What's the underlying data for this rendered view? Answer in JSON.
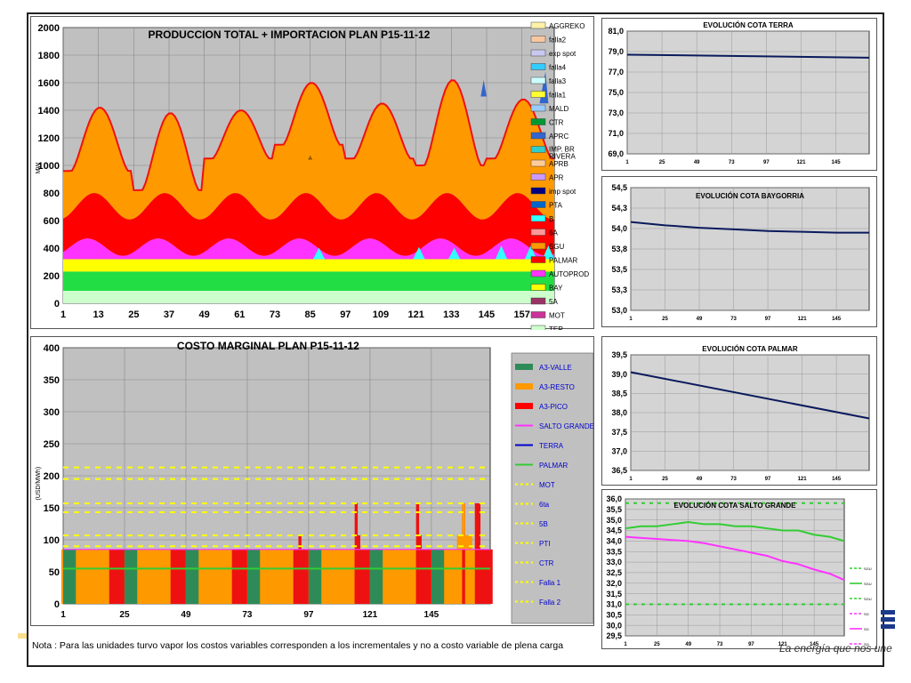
{
  "note": "Nota : Para las unidades turvo vapor los costos variables corresponden a los incrementales y no a costo variable de plena carga",
  "tagline": "La energía que nos une",
  "colors": {
    "plot_bg": "#c0c0c0",
    "line_dark": "#0a1a5c"
  },
  "chart_data": [
    {
      "id": "production",
      "type": "area",
      "title": "PRODUCCION TOTAL + IMPORTACION PLAN    P15-11-12",
      "ylabel": "MW",
      "ylim": [
        0,
        2000
      ],
      "yticks": [
        0,
        200,
        400,
        600,
        800,
        1000,
        1200,
        1400,
        1600,
        1800,
        2000
      ],
      "xlim": [
        1,
        168
      ],
      "xticks": [
        1,
        13,
        25,
        37,
        49,
        61,
        73,
        85,
        97,
        109,
        121,
        133,
        145,
        157
      ],
      "annotation": "A",
      "legend": [
        {
          "name": "AGGREKO",
          "color": "#fff2a8"
        },
        {
          "name": "falla2",
          "color": "#f7c8a0"
        },
        {
          "name": "exp spot",
          "color": "#c8c8f0"
        },
        {
          "name": "falla4",
          "color": "#33ccff"
        },
        {
          "name": "falla3",
          "color": "#ccffff"
        },
        {
          "name": "falla1",
          "color": "#ffff33"
        },
        {
          "name": "MALD",
          "color": "#99ccff"
        },
        {
          "name": "CTR",
          "color": "#009933"
        },
        {
          "name": "APRC",
          "color": "#3366cc"
        },
        {
          "name": "IMP. BR RIVERA",
          "color": "#33cccc"
        },
        {
          "name": "APRB",
          "color": "#ffcc99"
        },
        {
          "name": "APR",
          "color": "#cc99ff"
        },
        {
          "name": "imp spot",
          "color": "#000080"
        },
        {
          "name": "PTA",
          "color": "#0066cc"
        },
        {
          "name": "B",
          "color": "#33ffff"
        },
        {
          "name": "6A",
          "color": "#ff9999"
        },
        {
          "name": "SGU",
          "color": "#ff9900"
        },
        {
          "name": "PALMAR",
          "color": "#ff0000"
        },
        {
          "name": "AUTOPROD",
          "color": "#ff33ff"
        },
        {
          "name": "BAY",
          "color": "#ffff00"
        },
        {
          "name": "5A",
          "color": "#993366"
        },
        {
          "name": "MOT",
          "color": "#cc3399"
        },
        {
          "name": "TER",
          "color": "#ccffcc"
        }
      ],
      "series_levels": {
        "TER": 90,
        "CTR_top": 230,
        "BAY_top": 320,
        "AUTOPROD_peak": 470,
        "PALMAR_peak": 800,
        "SGU_daily_peak": [
          1420,
          1380,
          1400,
          1600,
          1450,
          1620,
          1480,
          1700
        ],
        "SGU_daily_valley": [
          960,
          820,
          1050,
          1150,
          1050,
          1000,
          1050,
          1150
        ]
      }
    },
    {
      "id": "marginal-cost",
      "type": "bar",
      "title": "COSTO MARGINAL PLAN    P15-11-12",
      "ylabel": "(USD/MWh)",
      "ylim": [
        0,
        400
      ],
      "yticks": [
        0,
        50,
        100,
        150,
        200,
        250,
        300,
        350,
        400
      ],
      "xlim": [
        1,
        168
      ],
      "xticks": [
        1,
        25,
        49,
        73,
        97,
        121,
        145
      ],
      "legend": [
        {
          "name": "A3-VALLE",
          "color": "#2e8b57",
          "style": "bar"
        },
        {
          "name": "A3-RESTO",
          "color": "#ff9900",
          "style": "bar"
        },
        {
          "name": "A3-PICO",
          "color": "#ff0000",
          "style": "bar"
        },
        {
          "name": "SALTO GRANDE",
          "color": "#ff33ff",
          "style": "line"
        },
        {
          "name": "TERRA",
          "color": "#0000cc",
          "style": "line"
        },
        {
          "name": "PALMAR",
          "color": "#33cc33",
          "style": "line"
        },
        {
          "name": "MOT",
          "color": "#ffff00",
          "style": "dash"
        },
        {
          "name": "6ta",
          "color": "#ffff00",
          "style": "dash"
        },
        {
          "name": "5B",
          "color": "#ffff00",
          "style": "dash"
        },
        {
          "name": "PTI",
          "color": "#ffff00",
          "style": "dash"
        },
        {
          "name": "CTR",
          "color": "#ffff00",
          "style": "dash"
        },
        {
          "name": "Falla 1",
          "color": "#ffff00",
          "style": "dash"
        },
        {
          "name": "Falla 2",
          "color": "#ffff00",
          "style": "dash"
        }
      ],
      "base_cost": 85,
      "palmar_line": 55,
      "dash_levels": [
        213,
        195,
        157,
        143,
        107,
        90
      ],
      "spikes": [
        {
          "x": 93,
          "value": 107
        },
        {
          "x": 115,
          "value": 157
        },
        {
          "x": 116,
          "value": 107
        },
        {
          "x": 139,
          "value": 157
        },
        {
          "x": 140,
          "value": 107
        },
        {
          "x": 157,
          "value": 157
        },
        {
          "x": 162,
          "value": 157
        },
        {
          "x": 163,
          "value": 157
        }
      ],
      "valle_bands": [
        [
          1,
          5
        ],
        [
          25,
          29
        ],
        [
          49,
          53
        ],
        [
          73,
          77
        ],
        [
          97,
          101
        ],
        [
          121,
          125
        ],
        [
          145,
          149
        ]
      ],
      "pico_bands": [
        [
          19,
          24
        ],
        [
          43,
          48
        ],
        [
          67,
          72
        ],
        [
          91,
          96
        ],
        [
          115,
          120
        ],
        [
          139,
          144
        ],
        [
          163,
          168
        ]
      ]
    },
    {
      "id": "cota-terra",
      "type": "line",
      "title": "EVOLUCIÓN COTA TERRA",
      "ylim": [
        69,
        81
      ],
      "yticks": [
        "69,0",
        "71,0",
        "73,0",
        "75,0",
        "77,0",
        "79,0",
        "81,0"
      ],
      "ytick_values": [
        69,
        71,
        73,
        75,
        77,
        79,
        81
      ],
      "xlim": [
        1,
        168
      ],
      "xticks": [
        1,
        25,
        49,
        73,
        97,
        121,
        145
      ],
      "x": [
        1,
        168
      ],
      "y": [
        78.7,
        78.4
      ]
    },
    {
      "id": "cota-baygorria",
      "type": "line",
      "title": "EVOLUCIÓN COTA BAYGORRIA",
      "ylim": [
        53.0,
        54.5
      ],
      "yticks": [
        "53,0",
        "53,3",
        "53,5",
        "53,8",
        "54,0",
        "54,3",
        "54,5"
      ],
      "ytick_values": [
        53.0,
        53.25,
        53.5,
        53.75,
        54.0,
        54.25,
        54.5
      ],
      "xlim": [
        1,
        168
      ],
      "xticks": [
        1,
        25,
        49,
        73,
        97,
        121,
        145
      ],
      "x": [
        1,
        25,
        49,
        73,
        97,
        121,
        145,
        168
      ],
      "y": [
        54.08,
        54.04,
        54.01,
        53.99,
        53.97,
        53.96,
        53.95,
        53.95
      ]
    },
    {
      "id": "cota-palmar",
      "type": "line",
      "title": "EVOLUCIÓN COTA PALMAR",
      "ylim": [
        36.5,
        39.5
      ],
      "yticks": [
        "36,5",
        "37,0",
        "37,5",
        "38,0",
        "38,5",
        "39,0",
        "39,5"
      ],
      "ytick_values": [
        36.5,
        37.0,
        37.5,
        38.0,
        38.5,
        39.0,
        39.5
      ],
      "xlim": [
        1,
        168
      ],
      "xticks": [
        1,
        25,
        49,
        73,
        97,
        121,
        145
      ],
      "x": [
        1,
        168
      ],
      "y": [
        39.05,
        37.85
      ]
    },
    {
      "id": "cota-salto-grande",
      "type": "line",
      "title": "EVOLUCIÓN COTA SALTO GRANDE",
      "ylim": [
        29.5,
        36.0
      ],
      "yticks": [
        "29,5",
        "30,0",
        "30,5",
        "31,0",
        "31,5",
        "32,0",
        "32,5",
        "33,0",
        "33,5",
        "34,0",
        "34,5",
        "35,0",
        "35,5",
        "36,0"
      ],
      "ytick_values": [
        29.5,
        30.0,
        30.5,
        31.0,
        31.5,
        32.0,
        32.5,
        33.0,
        33.5,
        34.0,
        34.5,
        35.0,
        35.5,
        36.0
      ],
      "xlim": [
        1,
        168
      ],
      "xticks": [
        1,
        25,
        49,
        73,
        97,
        121,
        145
      ],
      "series": [
        {
          "name": "SGU",
          "color": "#33cc33",
          "x": [
            1,
            13,
            25,
            37,
            49,
            61,
            73,
            85,
            97,
            109,
            121,
            133,
            145,
            157,
            168
          ],
          "y": [
            34.6,
            34.7,
            34.7,
            34.8,
            34.9,
            34.8,
            34.8,
            34.7,
            34.7,
            34.6,
            34.5,
            34.5,
            34.3,
            34.2,
            34.0
          ]
        },
        {
          "name": "SG",
          "color": "#ff33ff",
          "x": [
            1,
            13,
            25,
            37,
            49,
            61,
            73,
            85,
            97,
            109,
            121,
            133,
            145,
            157,
            168
          ],
          "y": [
            34.2,
            34.15,
            34.1,
            34.05,
            34.0,
            33.9,
            33.75,
            33.6,
            33.45,
            33.3,
            33.05,
            32.9,
            32.65,
            32.45,
            32.15
          ]
        }
      ],
      "ref_lines": [
        {
          "y": 35.8,
          "color": "#33cc33"
        },
        {
          "y": 31.0,
          "color": "#33cc33"
        }
      ],
      "legend_labels": [
        "SGU",
        "SGU",
        "SGU",
        "SG",
        "SG",
        "SG"
      ]
    }
  ]
}
